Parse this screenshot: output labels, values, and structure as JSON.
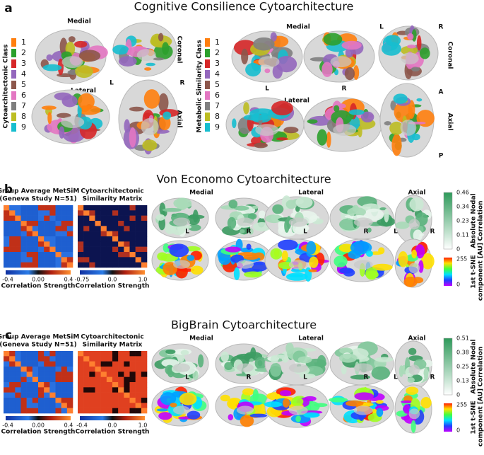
{
  "panel_a": {
    "letter": "a",
    "title": "Cognitive Consilience Cytoarchitecture",
    "left": {
      "legend_title": "Cytoarchitectonic Class",
      "classes": [
        {
          "label": "1",
          "color": "#ff7f0e"
        },
        {
          "label": "2",
          "color": "#2ca02c"
        },
        {
          "label": "3",
          "color": "#d62728"
        },
        {
          "label": "4",
          "color": "#9467bd"
        },
        {
          "label": "5",
          "color": "#8c564b"
        },
        {
          "label": "6",
          "color": "#e377c2"
        },
        {
          "label": "7",
          "color": "#7f7f7f"
        },
        {
          "label": "8",
          "color": "#bcbd22"
        },
        {
          "label": "9",
          "color": "#17becf"
        }
      ],
      "medial": "Medial",
      "coronal": "Coronal",
      "lateral": "Lateral",
      "axial_l": "L",
      "axial_r": "R",
      "axial": "Axial"
    },
    "right": {
      "legend_title": "Metabolic Similarity Class",
      "classes": [
        {
          "label": "1",
          "color": "#ff7f0e"
        },
        {
          "label": "2",
          "color": "#2ca02c"
        },
        {
          "label": "3",
          "color": "#d62728"
        },
        {
          "label": "4",
          "color": "#9467bd"
        },
        {
          "label": "5",
          "color": "#8c564b"
        },
        {
          "label": "6",
          "color": "#e377c2"
        },
        {
          "label": "7",
          "color": "#7f7f7f"
        },
        {
          "label": "8",
          "color": "#bcbd22"
        },
        {
          "label": "9",
          "color": "#17becf"
        }
      ],
      "medial": "Medial",
      "lateral_l": "L",
      "lateral_r": "R",
      "lateral": "Lateral",
      "coronal_l": "L",
      "coronal_r": "R",
      "coronal": "Coronal",
      "anterior": "A",
      "axial": "Axial",
      "posterior": "P"
    }
  },
  "panel_b": {
    "letter": "b",
    "title": "Von Economo Cytoarchitecture",
    "matrices": [
      {
        "title_lines": [
          "Group Average MetSiM",
          "(Geneva Study N=51)"
        ],
        "ticks": [
          "-0.4",
          "0.00",
          "0.4"
        ],
        "label": "Correlation Strength"
      },
      {
        "title_lines": [
          "Cytoarchitectonic",
          "Similarity Matrix"
        ],
        "ticks": [
          "-0.75",
          "0.0",
          "1.0"
        ],
        "label": "Correlation Strength"
      }
    ],
    "views": [
      "Medial",
      "Lateral",
      "Axial"
    ],
    "hemispheres": [
      "L",
      "R",
      "L",
      "R",
      "L",
      "R"
    ],
    "nodal_colorbar": {
      "label_lines": [
        "Absolute Nodal",
        "Correlation"
      ],
      "ticks": [
        "0.46",
        "0.34",
        "0.23",
        "0.11",
        "0"
      ]
    },
    "tsne_colorbar": {
      "label_lines": [
        "1st t-SNE",
        "component [AU]"
      ],
      "ticks": [
        "255",
        "0"
      ]
    }
  },
  "panel_c": {
    "letter": "c",
    "title": "BigBrain Cytoarchitecture",
    "matrices": [
      {
        "title_lines": [
          "Group Average MetSiM",
          "(Geneva Study N=51)"
        ],
        "ticks": [
          "-0.4",
          "0.00",
          "0.4"
        ],
        "label": "Correlation Strength"
      },
      {
        "title_lines": [
          "Cytoarchitectonic",
          "Similarity Matrix"
        ],
        "ticks": [
          "-0.4",
          "0.0",
          "1.0"
        ],
        "label": "Correlation Strength"
      }
    ],
    "views": [
      "Medial",
      "Lateral",
      "Axial"
    ],
    "hemispheres": [
      "L",
      "R",
      "L",
      "R",
      "L",
      "R"
    ],
    "nodal_colorbar": {
      "label_lines": [
        "Absolute Nodal",
        "Correlation"
      ],
      "ticks": [
        "0.51",
        "0.38",
        "0.25",
        "0.13",
        "0"
      ]
    },
    "tsne_colorbar": {
      "label_lines": [
        "1st t-SNE",
        "component [AU]"
      ],
      "ticks": [
        "255",
        "0"
      ]
    }
  }
}
